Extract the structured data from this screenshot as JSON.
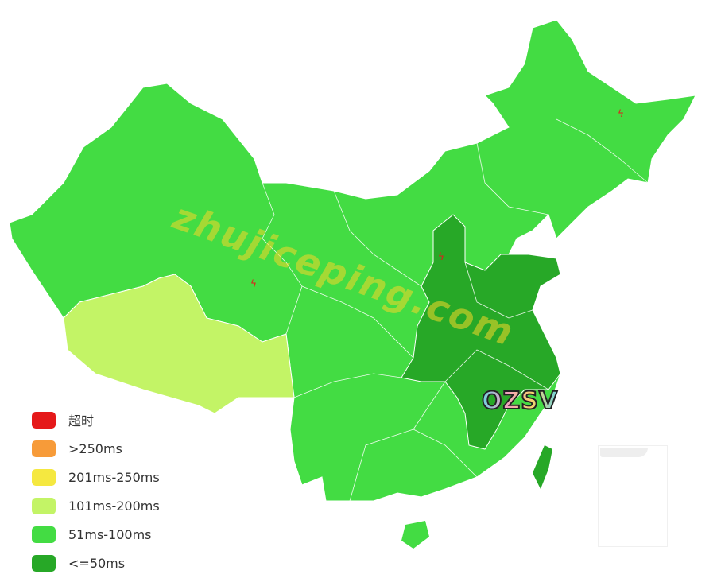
{
  "colors": {
    "timeout": "#e5191a",
    "over250": "#f79b39",
    "ms201_250": "#f5e840",
    "ms101_200": "#c3f466",
    "ms51_100": "#43dc43",
    "le50": "#27a827",
    "border": "#ffffff"
  },
  "legend": [
    {
      "label": "超时",
      "color": "#e5191a"
    },
    {
      "label": ">250ms",
      "color": "#f79b39"
    },
    {
      "label": "201ms-250ms",
      "color": "#f5e840"
    },
    {
      "label": "101ms-200ms",
      "color": "#c3f466"
    },
    {
      "label": "51ms-100ms",
      "color": "#43dc43"
    },
    {
      "label": "<=50ms",
      "color": "#27a827"
    }
  ],
  "markers": {
    "icon": "lightning-icon",
    "glyph": "ϟ"
  },
  "watermark": "zhujiceping.com",
  "logo": "OZSV"
}
